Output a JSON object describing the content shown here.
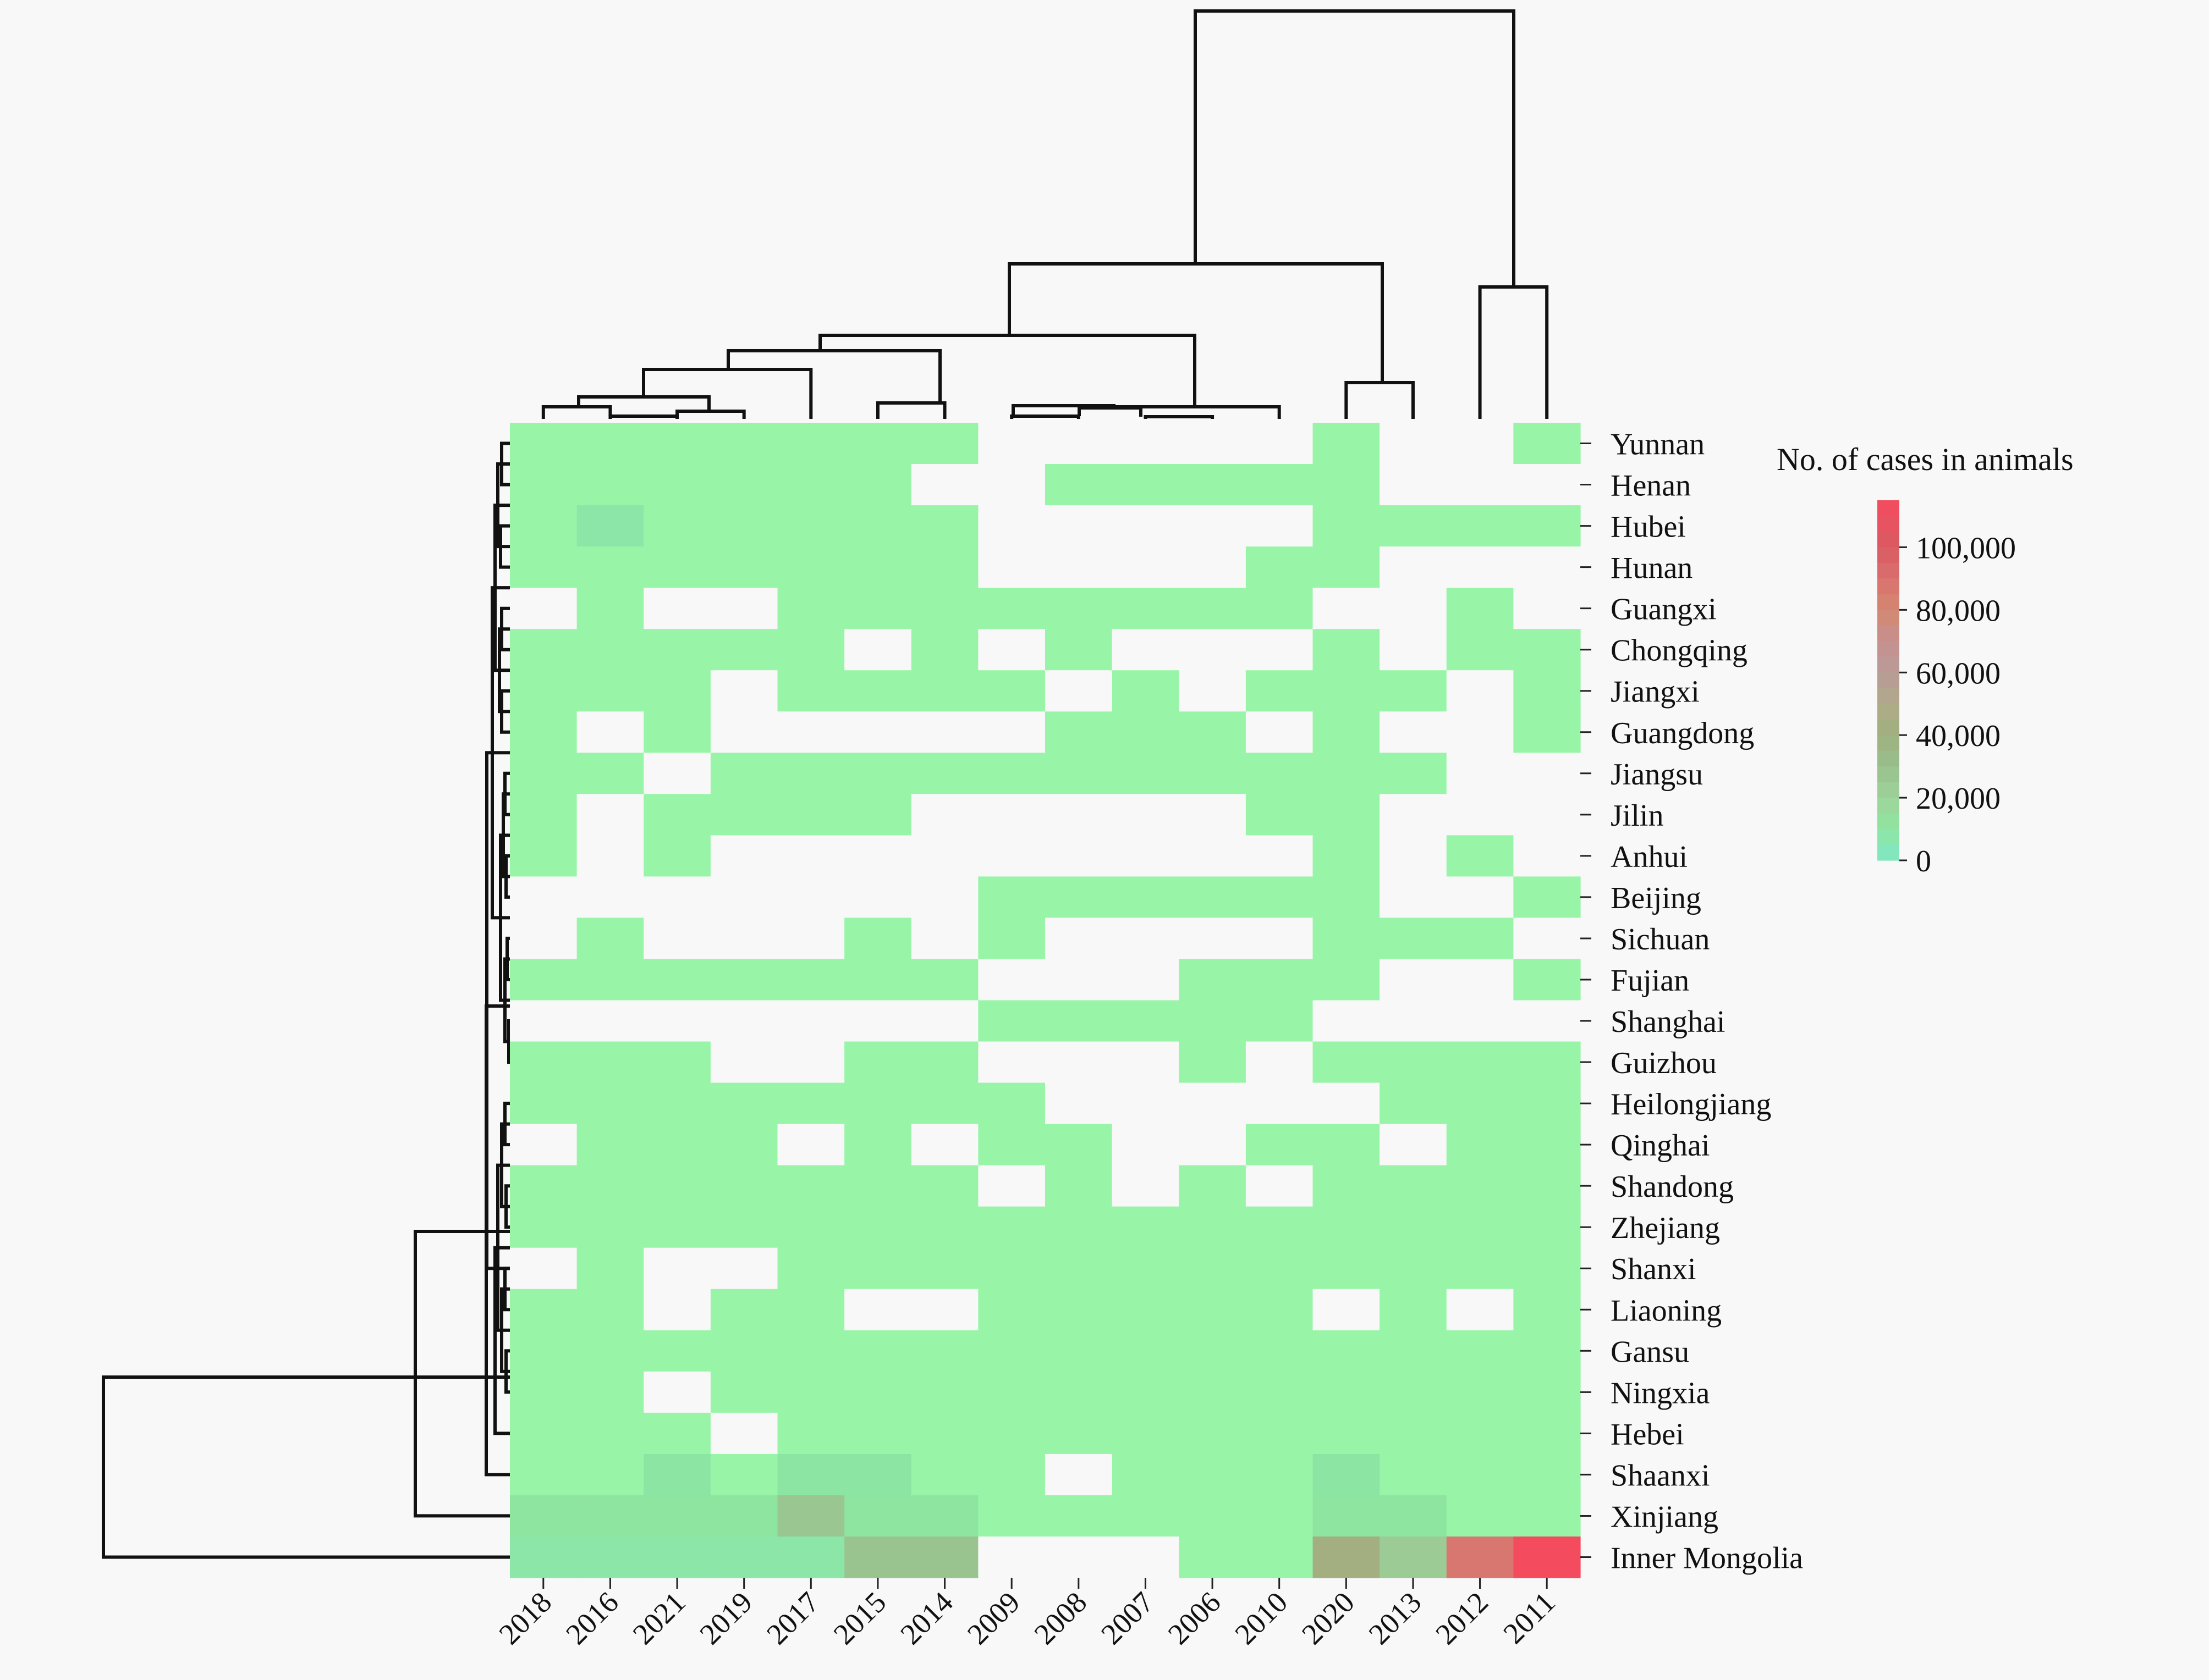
{
  "chart_data": {
    "type": "heatmap",
    "title": "",
    "xlabel": "",
    "ylabel": "",
    "columns": [
      "2018",
      "2016",
      "2021",
      "2019",
      "2017",
      "2015",
      "2014",
      "2009",
      "2008",
      "2007",
      "2006",
      "2010",
      "2020",
      "2013",
      "2012",
      "2011"
    ],
    "rows": [
      "Yunnan",
      "Henan",
      "Hubei",
      "Hunan",
      "Guangxi",
      "Chongqing",
      "Jiangxi",
      "Guangdong",
      "Jiangsu",
      "Jilin",
      "Anhui",
      "Beijing",
      "Sichuan",
      "Fujian",
      "Shanghai",
      "Guizhou",
      "Heilongjiang",
      "Qinghai",
      "Shandong",
      "Zhejiang",
      "Shanxi",
      "Liaoning",
      "Gansu",
      "Ningxia",
      "Hebei",
      "Shaanxi",
      "Xinjiang",
      "Inner Mongolia"
    ],
    "values": [
      [
        1000,
        1000,
        1000,
        1000,
        1000,
        1000,
        1000,
        null,
        null,
        null,
        null,
        null,
        1000,
        null,
        null,
        1000
      ],
      [
        1000,
        1000,
        1000,
        1000,
        1000,
        1000,
        null,
        null,
        1000,
        1000,
        1000,
        1000,
        1000,
        null,
        null,
        null
      ],
      [
        1000,
        8000,
        1000,
        1000,
        1000,
        1000,
        1000,
        null,
        null,
        null,
        null,
        null,
        1000,
        1000,
        1000,
        1000
      ],
      [
        1000,
        1000,
        1000,
        1000,
        1000,
        1000,
        1000,
        null,
        null,
        null,
        null,
        1000,
        1000,
        null,
        null,
        null
      ],
      [
        null,
        1000,
        null,
        null,
        1000,
        1000,
        1000,
        1000,
        1000,
        1000,
        1000,
        1000,
        null,
        null,
        1000,
        null
      ],
      [
        1000,
        1000,
        1000,
        1000,
        1000,
        null,
        1000,
        null,
        1000,
        null,
        null,
        null,
        1000,
        null,
        1000,
        1000
      ],
      [
        1000,
        1000,
        1000,
        null,
        1000,
        1000,
        1000,
        1000,
        null,
        1000,
        null,
        1000,
        1000,
        1000,
        null,
        1000
      ],
      [
        1000,
        null,
        1000,
        null,
        null,
        null,
        null,
        null,
        1000,
        1000,
        1000,
        null,
        1000,
        null,
        null,
        1000
      ],
      [
        1000,
        1000,
        null,
        1000,
        1000,
        1000,
        1000,
        1000,
        1000,
        1000,
        1000,
        1000,
        1000,
        1000,
        null,
        null
      ],
      [
        1000,
        null,
        1000,
        1000,
        1000,
        1000,
        null,
        null,
        null,
        null,
        null,
        1000,
        1000,
        null,
        null,
        null
      ],
      [
        1000,
        null,
        1000,
        null,
        null,
        null,
        null,
        null,
        null,
        null,
        null,
        null,
        1000,
        null,
        1000,
        null
      ],
      [
        null,
        null,
        null,
        null,
        null,
        null,
        null,
        1000,
        1000,
        1000,
        1000,
        1000,
        1000,
        null,
        null,
        1000
      ],
      [
        null,
        1000,
        null,
        null,
        null,
        1000,
        null,
        1000,
        null,
        null,
        null,
        null,
        1000,
        1000,
        1000,
        null
      ],
      [
        1000,
        1000,
        1000,
        1000,
        1000,
        1000,
        1000,
        null,
        null,
        null,
        1000,
        1000,
        1000,
        null,
        null,
        1000
      ],
      [
        null,
        null,
        null,
        null,
        null,
        null,
        null,
        1000,
        1000,
        1000,
        1000,
        1000,
        null,
        null,
        null,
        null
      ],
      [
        1000,
        1000,
        1000,
        null,
        null,
        1000,
        1000,
        null,
        null,
        null,
        1000,
        null,
        1000,
        1000,
        1000,
        1000
      ],
      [
        1000,
        1000,
        1000,
        1000,
        1000,
        1000,
        1000,
        1000,
        null,
        null,
        null,
        null,
        null,
        1000,
        1000,
        1000
      ],
      [
        null,
        1000,
        1000,
        1000,
        null,
        1000,
        null,
        1000,
        1000,
        null,
        null,
        1000,
        1000,
        null,
        1000,
        1000
      ],
      [
        1000,
        1000,
        1000,
        1000,
        1000,
        1000,
        1000,
        null,
        1000,
        null,
        1000,
        null,
        1000,
        1000,
        1000,
        1000
      ],
      [
        1000,
        1000,
        1000,
        1000,
        1000,
        1000,
        1000,
        1000,
        1000,
        1000,
        1000,
        1000,
        1000,
        1000,
        1000,
        1000
      ],
      [
        null,
        1000,
        null,
        null,
        1000,
        1000,
        1000,
        1000,
        1000,
        1000,
        1000,
        1000,
        1000,
        1000,
        1000,
        1000
      ],
      [
        1000,
        1000,
        null,
        1000,
        1000,
        null,
        null,
        1000,
        1000,
        1000,
        1000,
        1000,
        null,
        1000,
        null,
        1000
      ],
      [
        1000,
        1000,
        1000,
        1000,
        1000,
        1000,
        1000,
        1000,
        1000,
        1000,
        1000,
        1000,
        1000,
        1000,
        1000,
        1000
      ],
      [
        1000,
        1000,
        null,
        1000,
        1000,
        1000,
        1000,
        1000,
        1000,
        1000,
        1000,
        1000,
        1000,
        1000,
        1000,
        1000
      ],
      [
        1000,
        1000,
        1000,
        null,
        1000,
        1000,
        1000,
        1000,
        1000,
        1000,
        1000,
        1000,
        1000,
        1000,
        1000,
        1000
      ],
      [
        1000,
        1000,
        9000,
        3000,
        9000,
        9000,
        1000,
        1000,
        null,
        1000,
        1000,
        1000,
        9000,
        1000,
        1000,
        1000
      ],
      [
        10000,
        10000,
        10000,
        10000,
        27000,
        10000,
        10000,
        1000,
        1000,
        1000,
        1000,
        1000,
        10000,
        10000,
        1000,
        1000
      ],
      [
        8000,
        8000,
        8000,
        8000,
        8000,
        28000,
        28000,
        null,
        null,
        null,
        1000,
        3000,
        42000,
        24000,
        87000,
        115000
      ]
    ],
    "colorbar": {
      "label": "No. of cases in animals",
      "min": 0,
      "max": 115000,
      "ticks": [
        0,
        20000,
        40000,
        60000,
        80000,
        100000
      ],
      "tick_labels": [
        "0",
        "20,000",
        "40,000",
        "60,000",
        "80,000",
        "100,000"
      ],
      "stops": [
        {
          "v": 0,
          "c": "#7fe8c8"
        },
        {
          "v": 10000,
          "c": "#8ee5a0"
        },
        {
          "v": 20000,
          "c": "#9ed39a"
        },
        {
          "v": 30000,
          "c": "#98c08e"
        },
        {
          "v": 40000,
          "c": "#a0b07e"
        },
        {
          "v": 50000,
          "c": "#b0aa8a"
        },
        {
          "v": 60000,
          "c": "#b89a98"
        },
        {
          "v": 70000,
          "c": "#c69090"
        },
        {
          "v": 80000,
          "c": "#d48870"
        },
        {
          "v": 90000,
          "c": "#da7070"
        },
        {
          "v": 100000,
          "c": "#d85a60"
        },
        {
          "v": 115000,
          "c": "#f54b5f"
        }
      ]
    },
    "missing_color": "#f8f8f8",
    "low_color": "#98f5a8",
    "column_dendrogram": true,
    "row_dendrogram": true,
    "legend_position": "top-right"
  }
}
